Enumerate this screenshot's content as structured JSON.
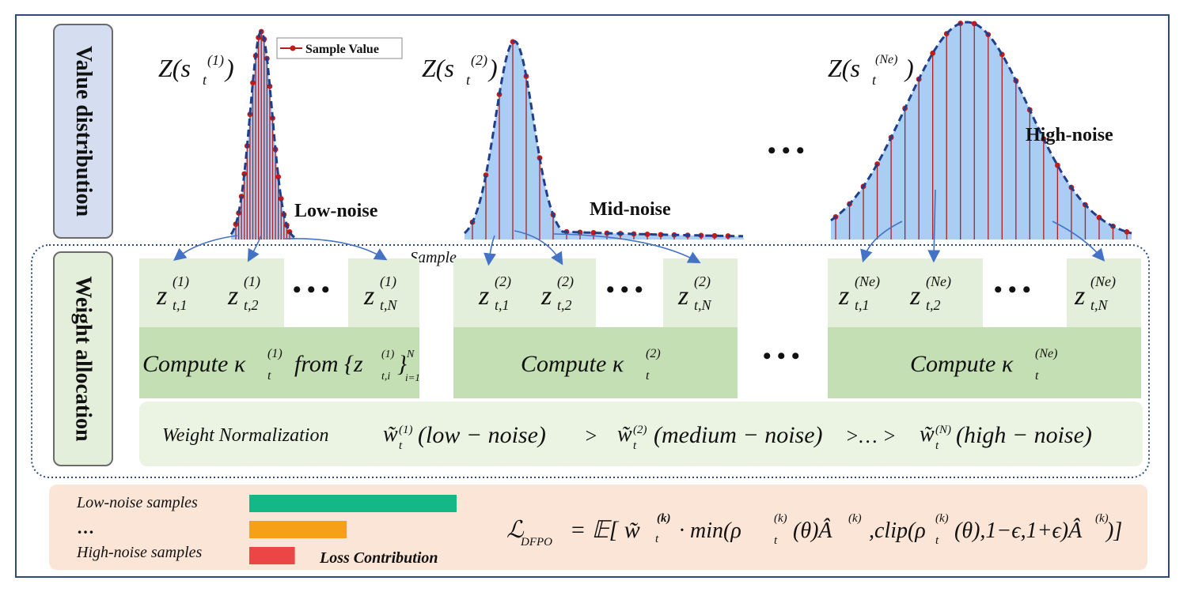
{
  "side_labels": {
    "value": "Value distribution",
    "weight": "Weight allocation"
  },
  "legend": {
    "sample_value": "Sample Value"
  },
  "distributions": [
    {
      "label_main": "Z(s",
      "label_sub": "t",
      "label_sup": "(1)",
      "label_end": ")",
      "noise": "Low-noise"
    },
    {
      "label_main": "Z(s",
      "label_sub": "t",
      "label_sup": "(2)",
      "label_end": ")",
      "noise": "Mid-noise"
    },
    {
      "label_main": "Z(s",
      "label_sub": "t",
      "label_sup": "(Ne)",
      "label_end": ")",
      "noise": "High-noise"
    }
  ],
  "ellipsis": "• • •",
  "sample_label": "Sample",
  "groups": [
    {
      "z1_sup": "(1)",
      "z2_sup": "(1)",
      "zN_sup": "(1)",
      "compute": "Compute κ",
      "compute_sup": "(1)",
      "compute_extra": "from {z",
      "extra_sub": "t,i",
      "extra_sup": "(1)",
      "extra_close": "}",
      "extra_range_sup": "N",
      "extra_range_sub": "i=1"
    },
    {
      "z1_sup": "(2)",
      "z2_sup": "(2)",
      "zN_sup": "(2)",
      "compute": "Compute κ",
      "compute_sup": "(2)"
    },
    {
      "z1_sup": "(Ne)",
      "z2_sup": "(Ne)",
      "zN_sup": "(Ne)",
      "compute": "Compute κ",
      "compute_sup": "(Ne)"
    }
  ],
  "z_subs": {
    "s1": "t,1",
    "s2": "t,2",
    "sN": "t,N"
  },
  "weight_norm": {
    "title": "Weight Normalization",
    "w1": "w̃",
    "w1_sup": "(1)",
    "w1_text": "(low − noise)",
    "gt1": ">",
    "w2": "w̃",
    "w2_sup": "(2)",
    "w2_text": "(medium − noise)",
    "gt2": ">… >",
    "w3": "w̃",
    "w3_sup": "(N)",
    "w3_text": "(high − noise)",
    "sub": "t"
  },
  "loss": {
    "low": "Low-noise samples",
    "mid": "…",
    "high": "High-noise samples",
    "contribution": "Loss  Contribution",
    "bar_fractions": [
      1.0,
      0.47,
      0.22
    ],
    "bar_colors": [
      "#14b886",
      "#f5a016",
      "#ec4545"
    ],
    "formula_lhs": "ℒ",
    "formula_lhs_sub": "DFPO",
    "formula_rhs": "= 𝔼[ w̃",
    "formula_w_sub": "t",
    "formula_w_sup": "(k)",
    "formula_rest": "· min(ρ",
    "formula_rest2": "(θ)Â",
    "formula_rest3": ",clip(ρ",
    "formula_rest4": "(θ),1−ϵ,1+ϵ)Â",
    "formula_end": ")]"
  },
  "colors": {
    "curve": "#1f3f8a",
    "fill": "#a9cdf3",
    "stem": "#b01e1e",
    "dot": "#c41a1a",
    "box_light": "#e3efda",
    "box_dark": "#c5dfb4",
    "arrow": "#4472c4"
  }
}
